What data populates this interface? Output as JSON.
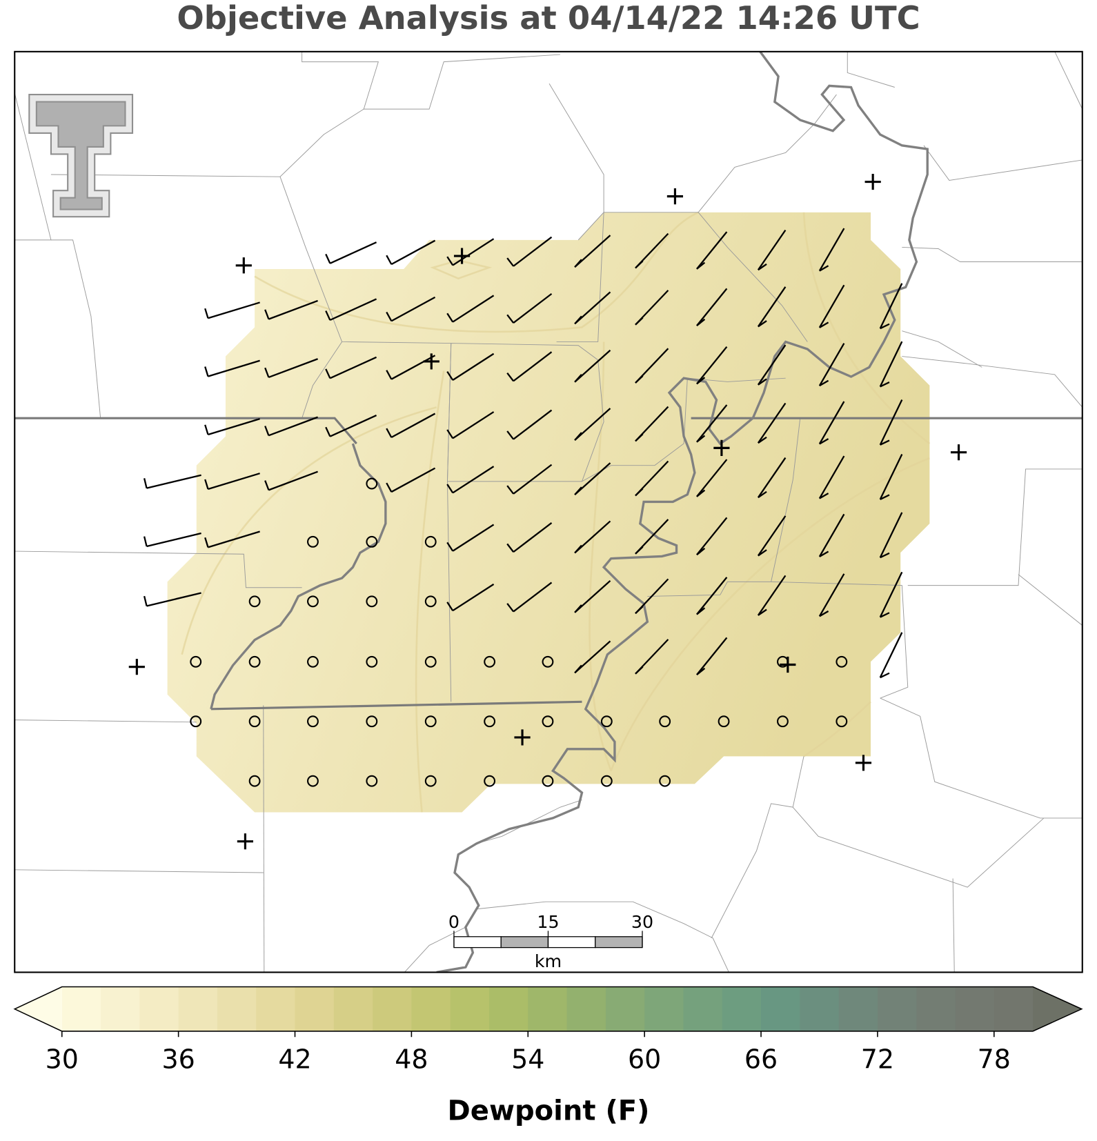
{
  "title": "Objective Analysis at 04/14/22 14:26 UTC",
  "colorbar": {
    "label": "Dewpoint (F)",
    "range": [
      30,
      80
    ],
    "ticks": [
      30,
      36,
      42,
      48,
      54,
      60,
      66,
      72,
      78
    ],
    "colors": [
      "#fcf8da",
      "#f8f2d0",
      "#f4ecc4",
      "#efe6b8",
      "#eae0ac",
      "#e5da9f",
      "#dfd493",
      "#d6cf87",
      "#cdca7c",
      "#c3c672",
      "#b7c26b",
      "#abbd68",
      "#9fb76a",
      "#93b16e",
      "#88ab74",
      "#7ea679",
      "#75a17d",
      "#6d9d80",
      "#689782",
      "#6b8f7f",
      "#6f887b",
      "#728277",
      "#737d73",
      "#737970",
      "#72766d"
    ],
    "under_color": "#fefce6",
    "over_color": "#6d7166"
  },
  "scale_bar": {
    "ticks": [
      0,
      15,
      30
    ],
    "unit": "km"
  }
}
